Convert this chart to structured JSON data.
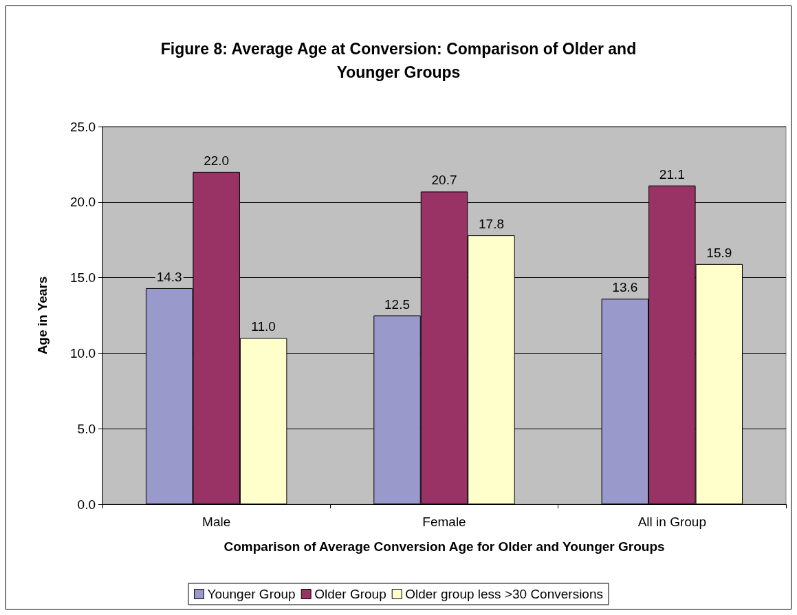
{
  "chart_data": {
    "type": "bar",
    "title": "Figure 8: Average Age at Conversion: Comparison of Older and\nYounger Groups",
    "xlabel": "Comparison of Average Conversion Age for Older and Younger Groups",
    "ylabel": "Age in Years",
    "categories": [
      "Male",
      "Female",
      "All in Group"
    ],
    "series": [
      {
        "name": "Younger Group",
        "color": "#9999cc",
        "values": [
          14.3,
          12.5,
          13.6
        ],
        "value_labels": [
          "14.3",
          "12.5",
          "13.6"
        ]
      },
      {
        "name": "Older Group",
        "color": "#993366",
        "values": [
          22.0,
          20.7,
          21.1
        ],
        "value_labels": [
          "22.0",
          "20.7",
          "21.1"
        ]
      },
      {
        "name": "Older group less >30 Conversions",
        "color": "#ffffcc",
        "values": [
          11.0,
          17.8,
          15.9
        ],
        "value_labels": [
          "11.0",
          "17.8",
          "15.9"
        ]
      }
    ],
    "ylim": [
      0,
      25
    ],
    "yticks": [
      {
        "value": 0,
        "label": "0.0"
      },
      {
        "value": 5,
        "label": "5.0"
      },
      {
        "value": 10,
        "label": "10.0"
      },
      {
        "value": 15,
        "label": "15.0"
      },
      {
        "value": 20,
        "label": "20.0"
      },
      {
        "value": 25,
        "label": "25.0"
      }
    ],
    "grid": "y",
    "legend": "bottom"
  }
}
